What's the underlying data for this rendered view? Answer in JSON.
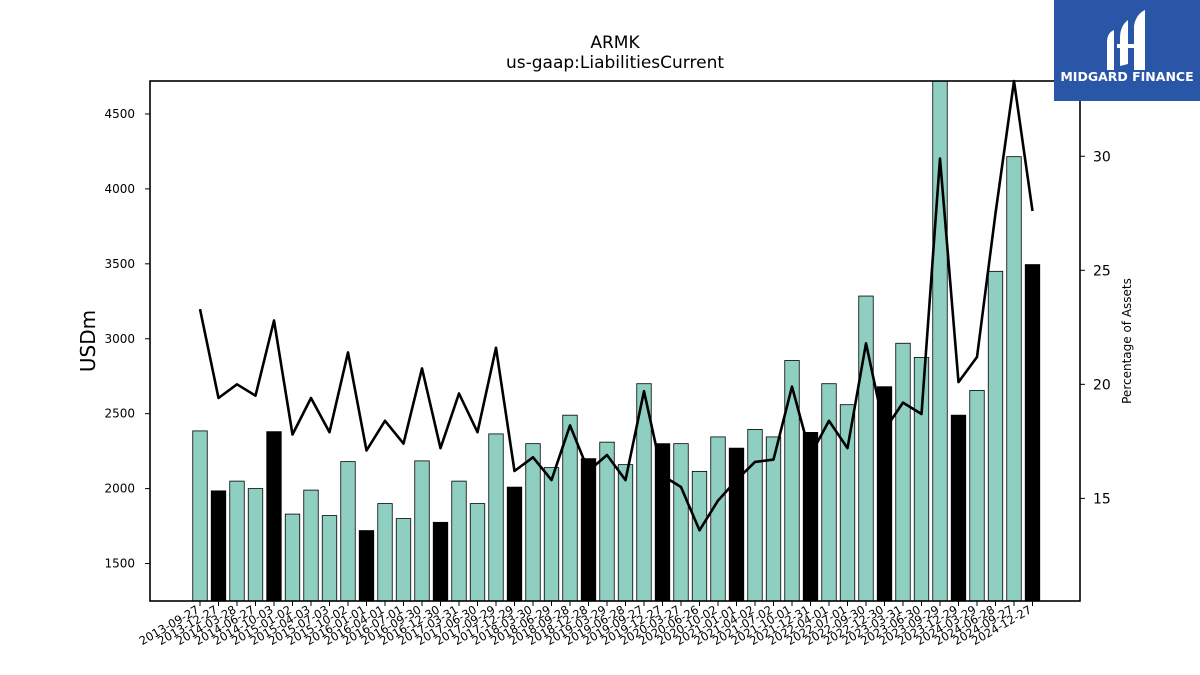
{
  "logo": {
    "text": "MIDGARD FINANCE",
    "bg_color": "#2a56a8"
  },
  "colors": {
    "bar_default": "#8ecfc2",
    "bar_q4": "#000000",
    "line": "#000000"
  },
  "chart_data": {
    "type": "bar",
    "title": "ARMK",
    "subtitle": "us-gaap:LiabilitiesCurrent",
    "ylabel": "USDm",
    "y2label": "Percentage of Assets",
    "ylim": [
      1250,
      4720
    ],
    "y2lim": [
      10.5,
      33.3
    ],
    "yticks": [
      1500,
      2000,
      2500,
      3000,
      3500,
      4000,
      4500
    ],
    "y2ticks": [
      15,
      20,
      25,
      30
    ],
    "categories": [
      "2013-09-27",
      "2013-12-27",
      "2014-03-28",
      "2014-06-27",
      "2014-10-03",
      "2015-01-02",
      "2015-04-03",
      "2015-07-03",
      "2015-10-02",
      "2016-01-01",
      "2016-04-01",
      "2016-07-01",
      "2016-09-30",
      "2016-12-30",
      "2017-03-31",
      "2017-06-30",
      "2017-09-29",
      "2017-12-29",
      "2018-03-30",
      "2018-06-29",
      "2018-09-28",
      "2018-12-28",
      "2019-03-29",
      "2019-06-28",
      "2019-09-27",
      "2019-12-27",
      "2020-03-27",
      "2020-06-26",
      "2020-10-02",
      "2021-01-01",
      "2021-04-02",
      "2021-07-02",
      "2021-10-01",
      "2021-12-31",
      "2022-04-01",
      "2022-07-01",
      "2022-09-30",
      "2022-12-30",
      "2023-03-31",
      "2023-06-30",
      "2023-09-29",
      "2023-12-29",
      "2024-03-29",
      "2024-06-28",
      "2024-09-27",
      "2024-12-27"
    ],
    "series": [
      {
        "type": "bar",
        "values": [
          2385,
          1985,
          2050,
          2000,
          2380,
          1830,
          1990,
          1820,
          2180,
          1720,
          1900,
          1800,
          2185,
          1775,
          2050,
          1900,
          2365,
          2010,
          2300,
          2140,
          2490,
          2200,
          2310,
          2160,
          2700,
          2300,
          2300,
          2115,
          2345,
          2270,
          2395,
          2345,
          2855,
          2375,
          2700,
          2560,
          3285,
          2680,
          2970,
          2875,
          4720,
          2490,
          2655,
          3450,
          4215,
          3495
        ]
      },
      {
        "type": "line",
        "axis": "right",
        "values": [
          23.3,
          19.4,
          20.0,
          19.5,
          22.8,
          17.8,
          19.4,
          17.9,
          21.4,
          17.1,
          18.4,
          17.4,
          20.7,
          17.2,
          19.6,
          17.9,
          21.6,
          16.2,
          16.8,
          15.8,
          18.2,
          16.2,
          16.9,
          15.8,
          19.7,
          16.0,
          15.5,
          13.6,
          14.9,
          15.8,
          16.6,
          16.7,
          19.9,
          16.9,
          18.4,
          17.2,
          21.8,
          18.0,
          19.2,
          18.7,
          29.9,
          20.1,
          21.2,
          27.5,
          33.3,
          27.6
        ]
      }
    ],
    "q4_indices": [
      1,
      4,
      9,
      13,
      17,
      21,
      25,
      29,
      33,
      37,
      41,
      45
    ],
    "grid": false,
    "legend": "none"
  }
}
